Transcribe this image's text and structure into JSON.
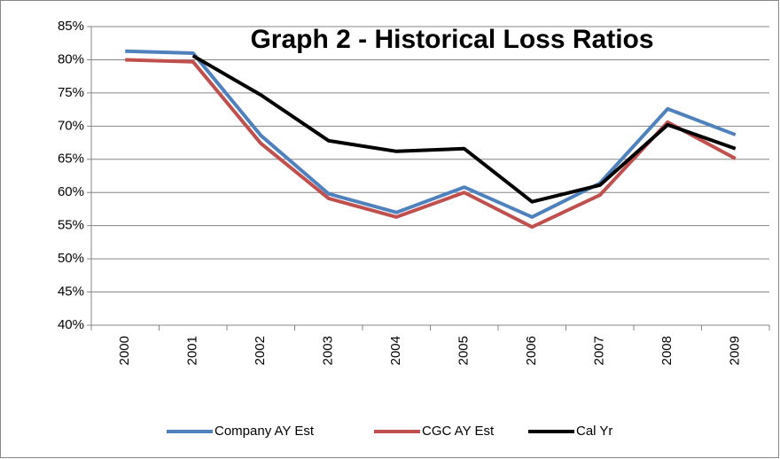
{
  "chart_data": {
    "type": "line",
    "title": "Graph 2 - Historical Loss Ratios",
    "categories": [
      "2000",
      "2001",
      "2002",
      "2003",
      "2004",
      "2005",
      "2006",
      "2007",
      "2008",
      "2009"
    ],
    "series": [
      {
        "name": "Company AY Est",
        "color": "#4f81bd",
        "values": [
          81.3,
          81.0,
          68.6,
          59.8,
          57.0,
          60.8,
          56.3,
          61.4,
          72.6,
          68.7
        ]
      },
      {
        "name": "CGC AY Est",
        "color": "#c0504d",
        "values": [
          80.0,
          79.7,
          67.4,
          59.1,
          56.3,
          60.0,
          54.8,
          59.6,
          70.6,
          65.1
        ]
      },
      {
        "name": "Cal Yr",
        "color": "#000000",
        "values": [
          null,
          80.6,
          74.7,
          67.8,
          66.2,
          66.6,
          58.6,
          61.1,
          70.2,
          66.6
        ]
      }
    ],
    "ylim": [
      40,
      85
    ],
    "yticks": [
      {
        "value": 40,
        "label": "40%"
      },
      {
        "value": 45,
        "label": "45%"
      },
      {
        "value": 50,
        "label": "50%"
      },
      {
        "value": 55,
        "label": "55%"
      },
      {
        "value": 60,
        "label": "60%"
      },
      {
        "value": 65,
        "label": "65%"
      },
      {
        "value": 70,
        "label": "70%"
      },
      {
        "value": 75,
        "label": "75%"
      },
      {
        "value": 80,
        "label": "80%"
      },
      {
        "value": 85,
        "label": "85%"
      }
    ],
    "grid": true,
    "legend": "bottom"
  }
}
